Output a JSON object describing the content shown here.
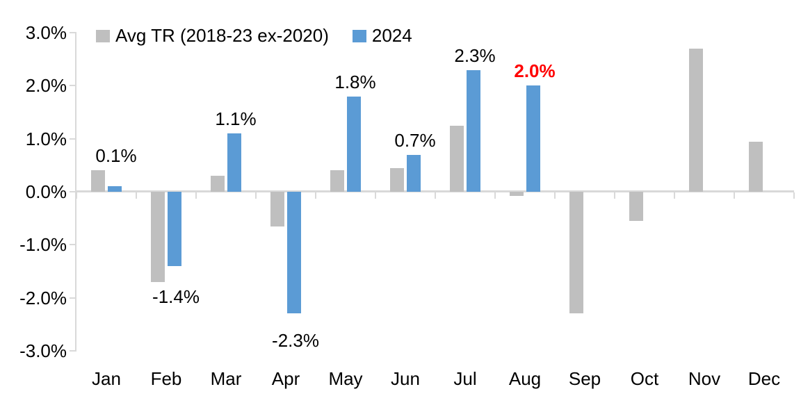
{
  "chart_data": {
    "type": "bar",
    "title": "",
    "categories": [
      "Jan",
      "Feb",
      "Mar",
      "Apr",
      "May",
      "Jun",
      "Jul",
      "Aug",
      "Sep",
      "Oct",
      "Nov",
      "Dec"
    ],
    "series": [
      {
        "name": "Avg TR (2018-23 ex-2020)",
        "color": "#bfbfbf",
        "values": [
          0.4,
          -1.7,
          0.3,
          -0.65,
          0.4,
          0.45,
          1.25,
          -0.08,
          -2.3,
          -0.55,
          2.7,
          0.95
        ]
      },
      {
        "name": "2024",
        "color": "#5b9bd5",
        "values": [
          0.1,
          -1.4,
          1.1,
          -2.3,
          1.8,
          0.7,
          2.3,
          2.0,
          null,
          null,
          null,
          null
        ]
      }
    ],
    "data_labels": [
      {
        "category_index": 0,
        "text": "0.1%",
        "position": "above",
        "color": "#000000",
        "bold": false,
        "dy": 0
      },
      {
        "category_index": 1,
        "text": "-1.4%",
        "position": "below",
        "color": "#000000",
        "bold": false,
        "dy": 0
      },
      {
        "category_index": 2,
        "text": "1.1%",
        "position": "above",
        "color": "#000000",
        "bold": false,
        "dy": 0
      },
      {
        "category_index": 3,
        "text": "-2.3%",
        "position": "below",
        "color": "#000000",
        "bold": false,
        "dy": 18
      },
      {
        "category_index": 4,
        "text": "1.8%",
        "position": "above",
        "color": "#000000",
        "bold": false,
        "dy": 0
      },
      {
        "category_index": 5,
        "text": "0.7%",
        "position": "above",
        "color": "#000000",
        "bold": false,
        "dy": 0
      },
      {
        "category_index": 6,
        "text": "2.3%",
        "position": "above",
        "color": "#000000",
        "bold": false,
        "dy": 0
      },
      {
        "category_index": 7,
        "text": "2.0%",
        "position": "above",
        "color": "#ff0000",
        "bold": true,
        "dy": 0
      }
    ],
    "y_axis": {
      "min": -3,
      "max": 3,
      "step": 1,
      "tick_labels": [
        "3.0%",
        "2.0%",
        "1.0%",
        "0.0%",
        "-1.0%",
        "-2.0%",
        "-3.0%"
      ]
    },
    "legend": {
      "position": "top",
      "entries": [
        {
          "label": "Avg TR (2018-23 ex-2020)",
          "color": "#bfbfbf"
        },
        {
          "label": "2024",
          "color": "#5b9bd5"
        }
      ]
    },
    "grid": "off",
    "axis_color": "#d9d9d9",
    "text_color": "#000000",
    "highlight_color": "#ff0000",
    "background": "#ffffff"
  }
}
